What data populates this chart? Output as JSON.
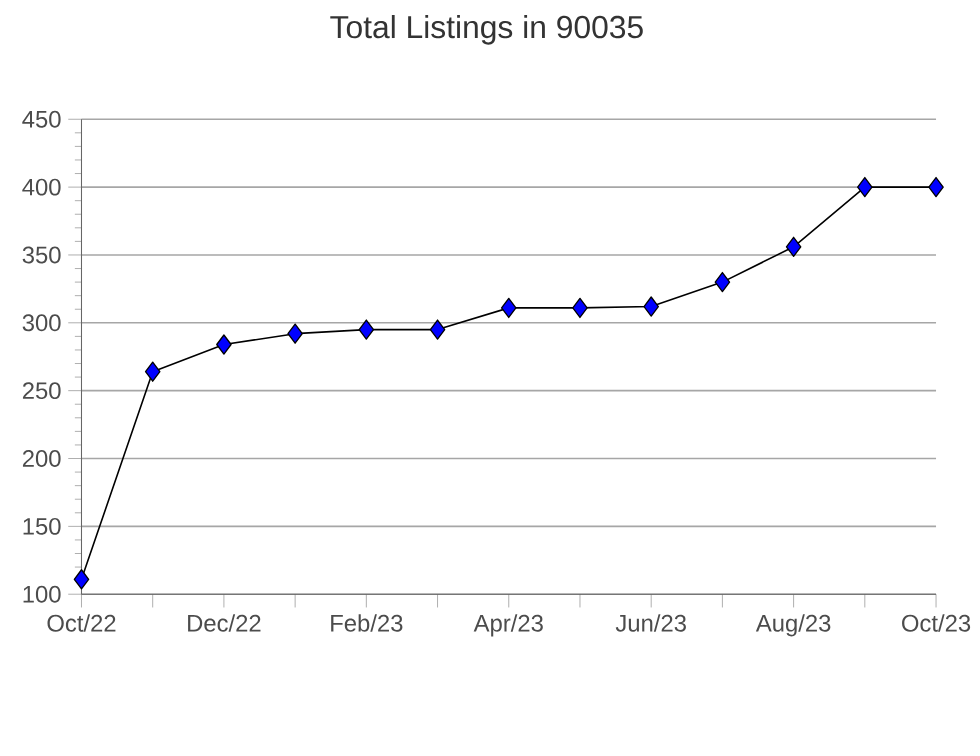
{
  "chart_data": {
    "type": "line",
    "title": "Total Listings in 90035",
    "categories": [
      "Oct/22",
      null,
      "Dec/22",
      null,
      "Feb/23",
      null,
      "Apr/23",
      null,
      "Jun/23",
      null,
      "Aug/23",
      null,
      "Oct/23"
    ],
    "series": [
      {
        "color": "#0000ff",
        "values": [
          111,
          264,
          284,
          292,
          295,
          295,
          311,
          311,
          312,
          330,
          356,
          400,
          400
        ]
      }
    ],
    "ylim": [
      100,
      450
    ],
    "yticks": [
      100,
      150,
      200,
      250,
      300,
      350,
      400,
      450
    ],
    "grid": "y",
    "marker": "diamond",
    "line_style": "solid"
  }
}
